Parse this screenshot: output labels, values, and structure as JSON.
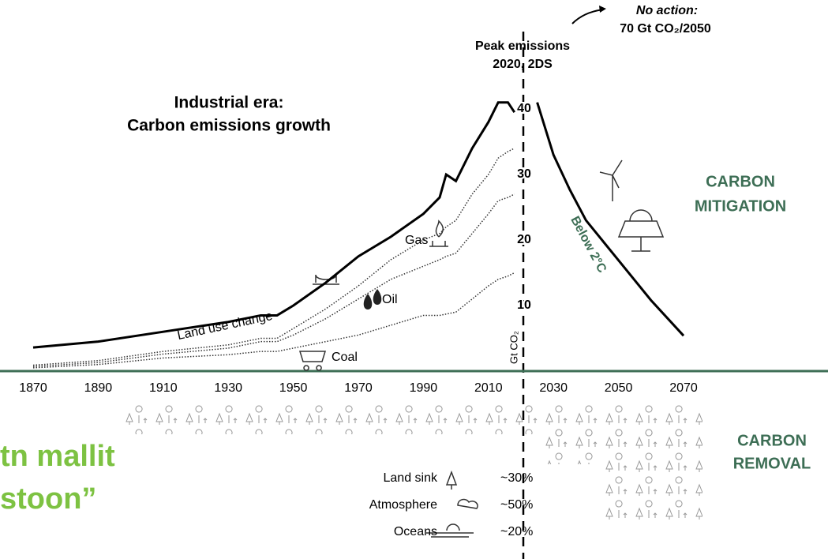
{
  "chart_data": {
    "type": "line",
    "title": [
      "Industrial era:",
      "Carbon emissions growth"
    ],
    "y_label": "Gt CO₂",
    "x": [
      1870,
      1890,
      1910,
      1930,
      1940,
      1945,
      1950,
      1960,
      1970,
      1980,
      1990,
      1995,
      1997,
      2000,
      2005,
      2010,
      2013,
      2016,
      2018
    ],
    "stacked": true,
    "series": [
      {
        "name": "Coal",
        "color": "#333333",
        "style": "dotted",
        "values": [
          0.5,
          1,
          2,
          2.5,
          3,
          3,
          3.5,
          4.5,
          5.5,
          7,
          8.5,
          8.5,
          8.7,
          9,
          11,
          13,
          14,
          14.5,
          15
        ]
      },
      {
        "name": "Oil",
        "color": "#333333",
        "style": "dotted",
        "values": [
          0.2,
          0.3,
          0.6,
          1,
          1.5,
          1.5,
          2,
          3.5,
          5.5,
          7,
          7.5,
          8.5,
          8.8,
          9,
          10,
          11,
          12,
          12,
          12
        ]
      },
      {
        "name": "Gas",
        "color": "#333333",
        "style": "dotted",
        "values": [
          0.2,
          0.3,
          0.4,
          0.5,
          0.5,
          0.5,
          1,
          1.5,
          2,
          3,
          4,
          4,
          4.5,
          5,
          6,
          6,
          6.5,
          7,
          7
        ]
      },
      {
        "name": "Land use change",
        "color": "#000000",
        "style": "solid",
        "values": [
          2.7,
          2.9,
          3,
          3.5,
          3.5,
          3.5,
          3.5,
          4,
          4.5,
          3.5,
          4,
          5.5,
          8,
          6,
          7,
          8,
          8.5,
          7.5,
          5.5
        ]
      }
    ],
    "projection": {
      "name": "Below 2°C",
      "color": "#000000",
      "label_color": "#3d6e55",
      "x": [
        2025,
        2030,
        2035,
        2040,
        2050,
        2060,
        2070
      ],
      "values": [
        41,
        33,
        27.7,
        23,
        16.9,
        10.8,
        5.4
      ]
    },
    "xlim": [
      1870,
      2070
    ],
    "ylim": [
      0,
      50
    ],
    "xticks": [
      1870,
      1890,
      1910,
      1930,
      1950,
      1970,
      1990,
      2010,
      2030,
      2050,
      2070
    ],
    "yticks": [
      10,
      20,
      30,
      40
    ],
    "annotations": {
      "peak": [
        "Peak emissions",
        "2020, 2DS"
      ],
      "no_action": [
        "No action:",
        "70 Gt CO₂/2050"
      ],
      "mitigation": [
        "CARBON",
        "MITIGATION"
      ],
      "removal": [
        "CARBON",
        "REMOVAL"
      ],
      "overlay": [
        "tn mallit",
        "stoon”"
      ]
    },
    "sinks": {
      "names": [
        "Land sink",
        "Atmosphere",
        "Oceans"
      ],
      "values": [
        30,
        50,
        20
      ],
      "value_labels": [
        "~30%",
        "~50%",
        "~20%"
      ]
    }
  }
}
